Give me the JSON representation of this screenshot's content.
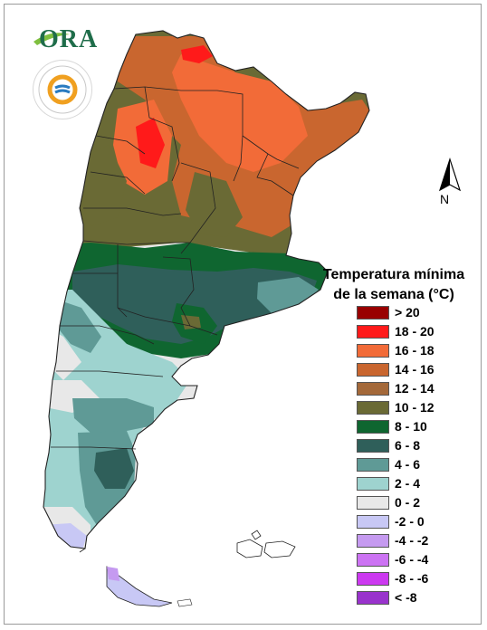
{
  "legend": {
    "title_line1": "Temperatura mínima",
    "title_line2": "de la semana (°C)",
    "classes": [
      {
        "label": "> 20",
        "color": "#990000"
      },
      {
        "label": "18 - 20",
        "color": "#ff1a1a"
      },
      {
        "label": "16 - 18",
        "color": "#f26b38"
      },
      {
        "label": "14 - 16",
        "color": "#c9662f"
      },
      {
        "label": "12 - 14",
        "color": "#a4693a"
      },
      {
        "label": "10 - 12",
        "color": "#6a6a35"
      },
      {
        "label": "8 - 10",
        "color": "#0f6630"
      },
      {
        "label": "6 - 8",
        "color": "#2f5f5a"
      },
      {
        "label": "4 - 6",
        "color": "#5f9a96"
      },
      {
        "label": "2 - 4",
        "color": "#9ed3cf"
      },
      {
        "label": "0 - 2",
        "color": "#e8e8e8"
      },
      {
        "label": "-2 - 0",
        "color": "#c8c8f5"
      },
      {
        "label": "-4 - -2",
        "color": "#c59af0"
      },
      {
        "label": "-6 - -4",
        "color": "#cc73f3"
      },
      {
        "label": "-8 - -6",
        "color": "#cc39f0"
      },
      {
        "label": "< -8",
        "color": "#9933cc"
      }
    ]
  },
  "logos": {
    "ora": "ORA"
  },
  "north_arrow": {
    "label": "N",
    "icon": "north-arrow-icon"
  }
}
